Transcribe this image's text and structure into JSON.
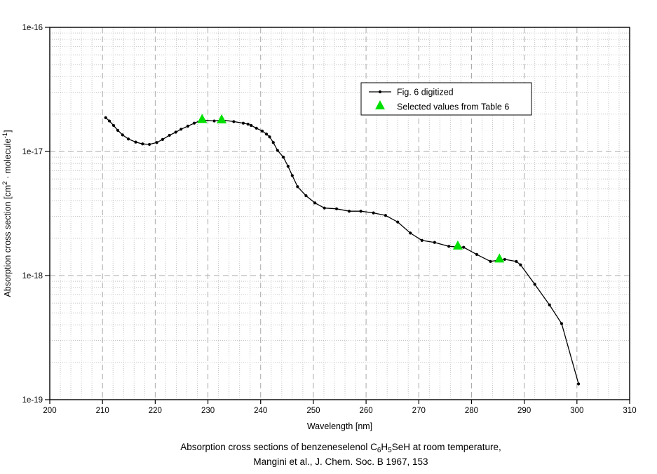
{
  "chart_data": {
    "type": "line",
    "title": "",
    "xlabel": "Wavelength [nm]",
    "ylabel_segments": [
      {
        "t": "Absorption cross section [cm"
      },
      {
        "t": "2",
        "sup": true
      },
      {
        "t": " · molecule"
      },
      {
        "t": "-1",
        "sup": true
      },
      {
        "t": "]"
      }
    ],
    "x_axis": {
      "min": 200,
      "max": 310,
      "major_ticks": [
        200,
        210,
        220,
        230,
        240,
        250,
        260,
        270,
        280,
        290,
        300,
        310
      ],
      "minor_step": 2
    },
    "y_axis": {
      "scale": "log",
      "min": 1e-19,
      "max": 1e-16,
      "major_tick_labels": [
        "1e-16",
        "1e-17",
        "1e-18",
        "1e-19"
      ],
      "major_tick_values": [
        1e-16,
        1e-17,
        1e-18,
        1e-19
      ]
    },
    "grid": {
      "major": "dashed",
      "minor": "dotted"
    },
    "legend_position": "upper-right",
    "series": [
      {
        "name": "Fig. 6 digitized",
        "style": "line-with-dot-markers",
        "color": "#000000",
        "points": [
          [
            210.6,
            1.87e-17
          ],
          [
            211.3,
            1.76e-17
          ],
          [
            212.1,
            1.62e-17
          ],
          [
            212.9,
            1.48e-17
          ],
          [
            213.8,
            1.36e-17
          ],
          [
            214.9,
            1.26e-17
          ],
          [
            216.3,
            1.19e-17
          ],
          [
            217.6,
            1.15e-17
          ],
          [
            218.9,
            1.14e-17
          ],
          [
            220.3,
            1.18e-17
          ],
          [
            221.4,
            1.25e-17
          ],
          [
            222.7,
            1.35e-17
          ],
          [
            223.9,
            1.43e-17
          ],
          [
            224.9,
            1.51e-17
          ],
          [
            226.2,
            1.6e-17
          ],
          [
            227.4,
            1.69e-17
          ],
          [
            228.8,
            1.79e-17
          ],
          [
            231.2,
            1.76e-17
          ],
          [
            232.7,
            1.79e-17
          ],
          [
            234.9,
            1.74e-17
          ],
          [
            236.7,
            1.69e-17
          ],
          [
            237.6,
            1.66e-17
          ],
          [
            238.2,
            1.62e-17
          ],
          [
            239.2,
            1.54e-17
          ],
          [
            240.3,
            1.46e-17
          ],
          [
            241.1,
            1.38e-17
          ],
          [
            241.7,
            1.31e-17
          ],
          [
            242.4,
            1.18e-17
          ],
          [
            243.2,
            1.02e-17
          ],
          [
            244.3,
            9e-18
          ],
          [
            245.2,
            7.6e-18
          ],
          [
            246.0,
            6.4e-18
          ],
          [
            247.0,
            5.2e-18
          ],
          [
            248.6,
            4.4e-18
          ],
          [
            250.3,
            3.85e-18
          ],
          [
            252.1,
            3.5e-18
          ],
          [
            254.4,
            3.45e-18
          ],
          [
            256.8,
            3.3e-18
          ],
          [
            259.0,
            3.3e-18
          ],
          [
            261.4,
            3.2e-18
          ],
          [
            263.7,
            3.05e-18
          ],
          [
            266.0,
            2.7e-18
          ],
          [
            268.4,
            2.2e-18
          ],
          [
            270.6,
            1.92e-18
          ],
          [
            273.0,
            1.85e-18
          ],
          [
            275.7,
            1.72e-18
          ],
          [
            278.5,
            1.69e-18
          ],
          [
            281.0,
            1.48e-18
          ],
          [
            283.6,
            1.3e-18
          ],
          [
            286.3,
            1.35e-18
          ],
          [
            288.5,
            1.3e-18
          ],
          [
            289.3,
            1.22e-18
          ],
          [
            292.0,
            8.5e-19
          ],
          [
            294.8,
            5.8e-19
          ],
          [
            297.1,
            4.1e-19
          ],
          [
            300.3,
            1.34e-19
          ]
        ]
      },
      {
        "name": "Selected values from Table 6",
        "style": "triangle-markers",
        "color": "#00e000",
        "points": [
          [
            228.9,
            1.81e-17
          ],
          [
            232.6,
            1.8e-17
          ],
          [
            277.4,
            1.73e-18
          ],
          [
            285.3,
            1.36e-18
          ]
        ]
      }
    ]
  },
  "caption": {
    "line1_segments": [
      {
        "t": "Absorption cross sections of benzeneselenol C"
      },
      {
        "t": "6",
        "sub": true
      },
      {
        "t": "H"
      },
      {
        "t": "5",
        "sub": true
      },
      {
        "t": "SeH at room temperature,"
      }
    ],
    "line2": "Mangini et al., J. Chem. Soc. B 1967, 153"
  },
  "colors": {
    "line": "#000000",
    "triangle": "#00e000",
    "grid_major": "#a8a8a8",
    "grid_minor": "#c4c4c4",
    "background": "#ffffff"
  }
}
